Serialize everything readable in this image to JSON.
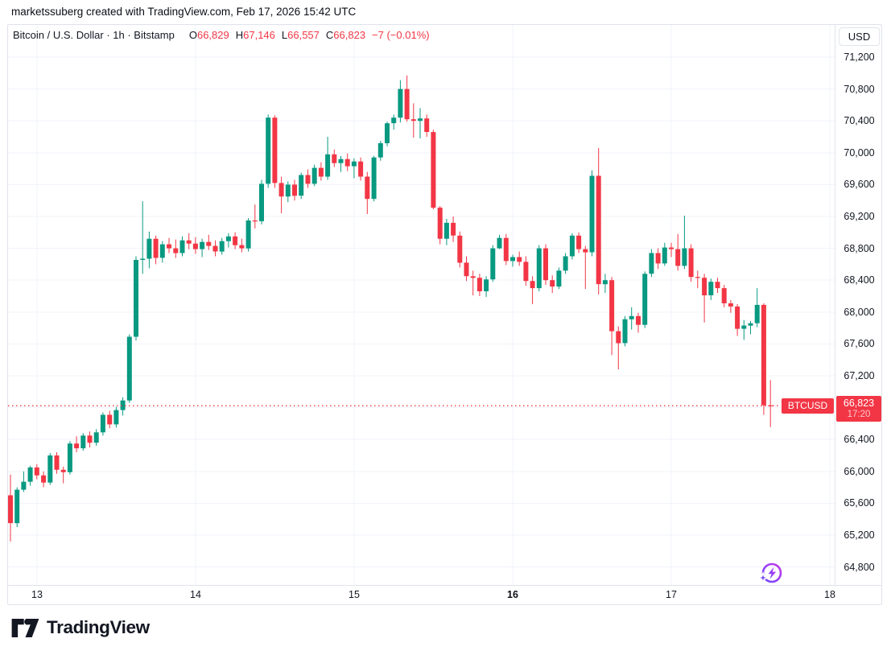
{
  "attribution": {
    "text": "marketssuberg created with TradingView.com, Feb 17, 2026 15:42 UTC"
  },
  "header": {
    "symbol": "Bitcoin / U.S. Dollar · 1h · Bitstamp",
    "o_label": "O",
    "o_value": "66,829",
    "h_label": "H",
    "h_value": "67,146",
    "l_label": "L",
    "l_value": "66,557",
    "c_label": "C",
    "c_value": "66,823",
    "change": "−7 (−0.01%)"
  },
  "price_axis": {
    "currency_button": "USD",
    "ticks": [
      {
        "value": 71200,
        "label": "71,200"
      },
      {
        "value": 70800,
        "label": "70,800"
      },
      {
        "value": 70400,
        "label": "70,400"
      },
      {
        "value": 70000,
        "label": "70,000"
      },
      {
        "value": 69600,
        "label": "69,600"
      },
      {
        "value": 69200,
        "label": "69,200"
      },
      {
        "value": 68800,
        "label": "68,800"
      },
      {
        "value": 68400,
        "label": "68,400"
      },
      {
        "value": 68000,
        "label": "68,000"
      },
      {
        "value": 67600,
        "label": "67,600"
      },
      {
        "value": 67200,
        "label": "67,200"
      },
      {
        "value": 66400,
        "label": "66,400"
      },
      {
        "value": 66000,
        "label": "66,000"
      },
      {
        "value": 65600,
        "label": "65,600"
      },
      {
        "value": 65200,
        "label": "65,200"
      },
      {
        "value": 64800,
        "label": "64,800"
      }
    ]
  },
  "time_axis": {
    "ticks": [
      {
        "candle_index": 4,
        "label": "13",
        "bold": false
      },
      {
        "candle_index": 28,
        "label": "14",
        "bold": false
      },
      {
        "candle_index": 52,
        "label": "15",
        "bold": false
      },
      {
        "candle_index": 76,
        "label": "16",
        "bold": true
      },
      {
        "candle_index": 100,
        "label": "17",
        "bold": false
      },
      {
        "candle_index": 124,
        "label": "18",
        "bold": false
      }
    ]
  },
  "price_label": {
    "symbol": "BTCUSD",
    "price": "66,823",
    "countdown": "17:20"
  },
  "footer": {
    "brand": "TradingView"
  },
  "colors": {
    "up": "#089981",
    "down": "#f23645",
    "grid": "#f0f3fa",
    "border": "#e0e3eb",
    "text": "#131722",
    "last_price": "#f23645",
    "spark_purple_1": "#6d4aff",
    "spark_purple_2": "#c437e9"
  },
  "chart_data": {
    "type": "candlestick",
    "title": "Bitcoin / U.S. Dollar",
    "exchange": "Bitstamp",
    "interval": "1h",
    "currency": "USD",
    "last_bar": {
      "open": 66829,
      "high": 67146,
      "low": 66557,
      "close": 66823,
      "change": -7,
      "change_pct": -0.01
    },
    "current_price": 66823,
    "y_axis": {
      "visible_min": 64800,
      "visible_max": 71200,
      "tick_step": 400
    },
    "x_axis_days": [
      "13",
      "14",
      "15",
      "16",
      "17",
      "18"
    ],
    "gridline_prices": [
      71200,
      70800,
      70400,
      70000,
      69600,
      69200,
      68800,
      68400,
      68000,
      67600,
      67200,
      66800,
      66400,
      66000,
      65600,
      65200,
      64800
    ],
    "candles": [
      [
        65700,
        65960,
        65120,
        65350
      ],
      [
        65350,
        65800,
        65300,
        65770
      ],
      [
        65770,
        66000,
        65740,
        65870
      ],
      [
        65870,
        66070,
        65820,
        66050
      ],
      [
        66050,
        66090,
        65900,
        65950
      ],
      [
        65950,
        66000,
        65800,
        65860
      ],
      [
        65860,
        66230,
        65830,
        66200
      ],
      [
        66200,
        66240,
        65970,
        66020
      ],
      [
        66020,
        66060,
        65850,
        65990
      ],
      [
        65990,
        66380,
        65960,
        66350
      ],
      [
        66350,
        66440,
        66240,
        66290
      ],
      [
        66290,
        66480,
        66260,
        66450
      ],
      [
        66450,
        66500,
        66300,
        66360
      ],
      [
        66360,
        66530,
        66320,
        66490
      ],
      [
        66490,
        66740,
        66450,
        66710
      ],
      [
        66710,
        66760,
        66540,
        66590
      ],
      [
        66590,
        66810,
        66550,
        66770
      ],
      [
        66770,
        66930,
        66700,
        66890
      ],
      [
        66890,
        67720,
        66860,
        67690
      ],
      [
        67690,
        68700,
        67640,
        68655
      ],
      [
        68655,
        69390,
        68480,
        68670
      ],
      [
        68670,
        69010,
        68550,
        68920
      ],
      [
        68920,
        68960,
        68600,
        68680
      ],
      [
        68680,
        68890,
        68620,
        68850
      ],
      [
        68850,
        68930,
        68740,
        68800
      ],
      [
        68800,
        68910,
        68680,
        68740
      ],
      [
        68740,
        68950,
        68700,
        68900
      ],
      [
        68900,
        68990,
        68790,
        68860
      ],
      [
        68860,
        68940,
        68730,
        68790
      ],
      [
        68790,
        68920,
        68690,
        68880
      ],
      [
        68880,
        68970,
        68780,
        68830
      ],
      [
        68830,
        68900,
        68700,
        68760
      ],
      [
        68760,
        68930,
        68720,
        68890
      ],
      [
        68890,
        68990,
        68810,
        68950
      ],
      [
        68950,
        69000,
        68790,
        68840
      ],
      [
        68840,
        68920,
        68750,
        68800
      ],
      [
        68800,
        69180,
        68760,
        69150
      ],
      [
        69150,
        69350,
        69050,
        69140
      ],
      [
        69140,
        69660,
        69100,
        69610
      ],
      [
        69610,
        70480,
        69560,
        70440
      ],
      [
        70440,
        70470,
        69560,
        69620
      ],
      [
        69620,
        69700,
        69240,
        69450
      ],
      [
        69450,
        69640,
        69380,
        69600
      ],
      [
        69600,
        69660,
        69400,
        69460
      ],
      [
        69460,
        69750,
        69420,
        69720
      ],
      [
        69720,
        69790,
        69560,
        69610
      ],
      [
        69610,
        69850,
        69580,
        69810
      ],
      [
        69810,
        69880,
        69650,
        69700
      ],
      [
        69700,
        70200,
        69660,
        69980
      ],
      [
        69980,
        70040,
        69820,
        69870
      ],
      [
        69870,
        69960,
        69760,
        69920
      ],
      [
        69920,
        69990,
        69770,
        69830
      ],
      [
        69830,
        69930,
        69680,
        69890
      ],
      [
        69890,
        69940,
        69650,
        69700
      ],
      [
        69700,
        69760,
        69230,
        69420
      ],
      [
        69420,
        69960,
        69390,
        69940
      ],
      [
        69940,
        70150,
        69900,
        70120
      ],
      [
        70120,
        70390,
        70080,
        70370
      ],
      [
        70370,
        70480,
        70290,
        70440
      ],
      [
        70440,
        70910,
        70380,
        70800
      ],
      [
        70800,
        70970,
        70390,
        70420
      ],
      [
        70420,
        70620,
        70190,
        70400
      ],
      [
        70400,
        70560,
        70180,
        70430
      ],
      [
        70430,
        70480,
        70200,
        70260
      ],
      [
        70260,
        70290,
        69290,
        69310
      ],
      [
        69310,
        69330,
        68850,
        68920
      ],
      [
        68920,
        69170,
        68840,
        69120
      ],
      [
        69120,
        69200,
        68880,
        68960
      ],
      [
        68960,
        69010,
        68560,
        68620
      ],
      [
        68620,
        68700,
        68390,
        68450
      ],
      [
        68450,
        68520,
        68210,
        68430
      ],
      [
        68430,
        68480,
        68200,
        68260
      ],
      [
        68260,
        68450,
        68190,
        68410
      ],
      [
        68410,
        68840,
        68380,
        68800
      ],
      [
        68800,
        68970,
        68790,
        68930
      ],
      [
        68930,
        68980,
        68590,
        68640
      ],
      [
        68640,
        68720,
        68570,
        68690
      ],
      [
        68690,
        68760,
        68580,
        68630
      ],
      [
        68630,
        68700,
        68330,
        68390
      ],
      [
        68390,
        68450,
        68100,
        68300
      ],
      [
        68300,
        68840,
        68260,
        68800
      ],
      [
        68800,
        68850,
        68340,
        68400
      ],
      [
        68400,
        68460,
        68240,
        68320
      ],
      [
        68320,
        68560,
        68290,
        68520
      ],
      [
        68520,
        68740,
        68480,
        68700
      ],
      [
        68700,
        68990,
        68660,
        68960
      ],
      [
        68960,
        69000,
        68740,
        68790
      ],
      [
        68790,
        68830,
        68290,
        68750
      ],
      [
        68750,
        69780,
        68700,
        69710
      ],
      [
        69710,
        70060,
        68220,
        68350
      ],
      [
        68350,
        68480,
        68240,
        68400
      ],
      [
        68400,
        68440,
        67460,
        67760
      ],
      [
        67760,
        67820,
        67280,
        67610
      ],
      [
        67610,
        67950,
        67570,
        67910
      ],
      [
        67910,
        68060,
        67780,
        67950
      ],
      [
        67950,
        67990,
        67740,
        67840
      ],
      [
        67840,
        68510,
        67800,
        68480
      ],
      [
        68480,
        68790,
        68440,
        68740
      ],
      [
        68740,
        68800,
        68540,
        68610
      ],
      [
        68610,
        68870,
        68580,
        68810
      ],
      [
        68810,
        68870,
        68690,
        68790
      ],
      [
        68790,
        68980,
        68520,
        68580
      ],
      [
        68580,
        69210,
        68540,
        68800
      ],
      [
        68800,
        68850,
        68380,
        68440
      ],
      [
        68440,
        68520,
        68300,
        68430
      ],
      [
        68430,
        68480,
        67870,
        68210
      ],
      [
        68210,
        68420,
        68150,
        68380
      ],
      [
        68380,
        68430,
        68240,
        68300
      ],
      [
        68300,
        68340,
        68060,
        68110
      ],
      [
        68110,
        68150,
        67990,
        68070
      ],
      [
        68070,
        68100,
        67700,
        67790
      ],
      [
        67790,
        67900,
        67650,
        67830
      ],
      [
        67830,
        67890,
        67720,
        67860
      ],
      [
        67860,
        68300,
        67810,
        68090
      ],
      [
        68090,
        68110,
        66710,
        66830
      ],
      [
        66829,
        67146,
        66557,
        66823
      ]
    ]
  }
}
